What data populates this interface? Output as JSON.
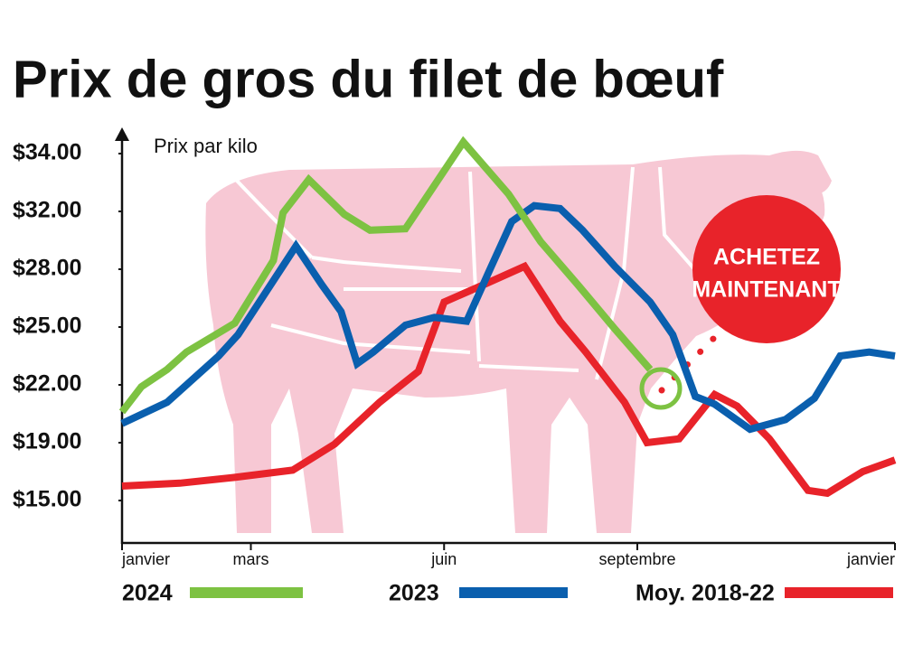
{
  "chart_data": {
    "type": "line",
    "title": "Prix de gros du filet de bœuf",
    "ylabel": "Prix par kilo",
    "annotation": [
      "ACHETEZ",
      "MAINTENANT"
    ],
    "xlim": [
      0,
      12
    ],
    "xticks": [
      {
        "value": 0,
        "label": "janvier"
      },
      {
        "value": 2,
        "label": "mars"
      },
      {
        "value": 5,
        "label": "juin"
      },
      {
        "value": 8,
        "label": "septembre"
      },
      {
        "value": 12,
        "label": "janvier"
      }
    ],
    "ylim": [
      12,
      35
    ],
    "yticks": [
      {
        "value": 34,
        "label": "$34.00"
      },
      {
        "value": 32,
        "label": "$32.00"
      },
      {
        "value": 28,
        "label": "$28.00"
      },
      {
        "value": 25,
        "label": "$25.00"
      },
      {
        "value": 22,
        "label": "$22.00"
      },
      {
        "value": 19,
        "label": "$19.00"
      },
      {
        "value": 15,
        "label": "$15.00"
      }
    ],
    "series": [
      {
        "name": "2024",
        "color": "#7dc242",
        "x": [
          0,
          0.3,
          0.7,
          1.0,
          1.5,
          1.75,
          2.35,
          2.5,
          2.9,
          3.45,
          3.85,
          4.4,
          5.3,
          6.0,
          6.5,
          7.1,
          7.65,
          8.2
        ],
        "values": [
          20.6,
          21.9,
          22.8,
          23.7,
          24.7,
          25.2,
          28.6,
          31.9,
          33.1,
          31.8,
          30.7,
          30.8,
          34.4,
          32.6,
          29.9,
          27.1,
          24.9,
          22.8
        ]
      },
      {
        "name": "2023",
        "color": "#0a5fae",
        "x": [
          0,
          0.7,
          1.5,
          1.8,
          2.7,
          3.1,
          3.4,
          3.65,
          3.9,
          4.4,
          4.85,
          5.35,
          5.7,
          6.05,
          6.4,
          6.8,
          7.15,
          7.65,
          8.2,
          8.55,
          8.9,
          9.2,
          9.75,
          10.3,
          10.75,
          11.15,
          11.6,
          12
        ],
        "values": [
          20.0,
          21.1,
          23.5,
          24.6,
          29.6,
          27.2,
          25.8,
          23.1,
          23.7,
          25.1,
          25.5,
          25.3,
          27.9,
          31.3,
          32.2,
          32.1,
          30.7,
          28.2,
          26.3,
          24.6,
          21.4,
          21.0,
          19.7,
          20.2,
          21.3,
          23.5,
          23.7,
          23.5
        ]
      },
      {
        "name": "Moy. 2018-22",
        "color": "#e8232a",
        "x": [
          0,
          0.9,
          1.75,
          2.65,
          3.3,
          4.0,
          4.6,
          5.0,
          5.55,
          6.25,
          6.8,
          7.2,
          7.8,
          8.15,
          8.65,
          9.2,
          9.55,
          10.05,
          10.65,
          10.95,
          11.5,
          12
        ],
        "values": [
          16.0,
          16.2,
          16.6,
          17.1,
          18.9,
          21.1,
          22.7,
          26.3,
          27.1,
          28.2,
          25.3,
          23.7,
          21.1,
          19.0,
          19.2,
          21.5,
          20.9,
          19.2,
          15.7,
          15.5,
          17.0,
          17.8
        ]
      }
    ]
  }
}
